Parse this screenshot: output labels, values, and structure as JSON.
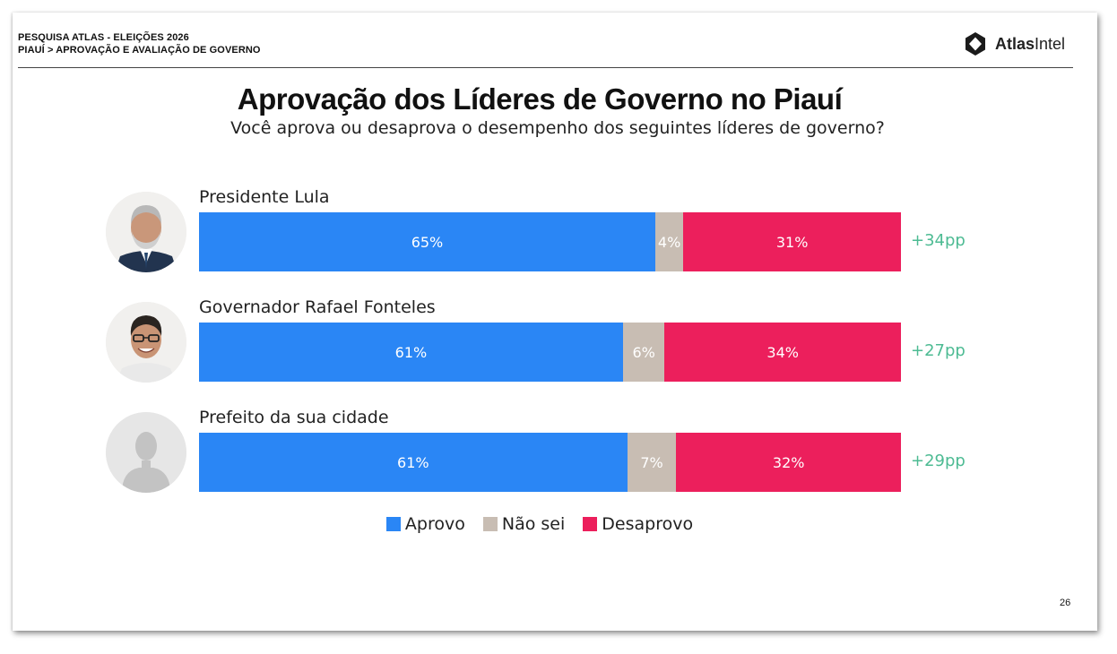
{
  "header": {
    "line1": "PESQUISA ATLAS - ELEIÇÕES 2026",
    "line2": "PIAUÍ > APROVAÇÃO E AVALIAÇÃO DE GOVERNO",
    "logo_bold": "Atlas",
    "logo_light": "Intel"
  },
  "page_number": "26",
  "colors": {
    "aprovo": "#2a86f5",
    "nao_sei": "#c8bdb3",
    "desaprovo": "#ec1f5c",
    "net_margin": "#4dbb93"
  },
  "chart_data": {
    "type": "bar",
    "orientation": "horizontal",
    "stacked": true,
    "title": "Aprovação dos Líderes de Governo no Piauí",
    "subtitle": "Você aprova ou desaprova o desempenho dos seguintes líderes de governo?",
    "unit": "%",
    "categories": [
      "Presidente Lula",
      "Governador Rafael Fonteles",
      "Prefeito da sua cidade"
    ],
    "series": [
      {
        "name": "Aprovo",
        "values": [
          65,
          61,
          61
        ]
      },
      {
        "name": "Não sei",
        "values": [
          4,
          6,
          7
        ]
      },
      {
        "name": "Desaprovo",
        "values": [
          31,
          34,
          32
        ]
      }
    ],
    "value_labels": [
      [
        "65%",
        "4%",
        "31%"
      ],
      [
        "61%",
        "6%",
        "34%"
      ],
      [
        "61%",
        "7%",
        "32%"
      ]
    ],
    "net_labels": [
      "+34pp",
      "+27pp",
      "+29pp"
    ],
    "xlim": [
      0,
      100
    ],
    "legend_position": "bottom-center",
    "grid": false
  },
  "avatars": [
    {
      "icon": "person-photo-icon",
      "depicts": "photo"
    },
    {
      "icon": "person-photo-icon",
      "depicts": "photo"
    },
    {
      "icon": "placeholder-silhouette-icon",
      "depicts": "placeholder"
    }
  ]
}
